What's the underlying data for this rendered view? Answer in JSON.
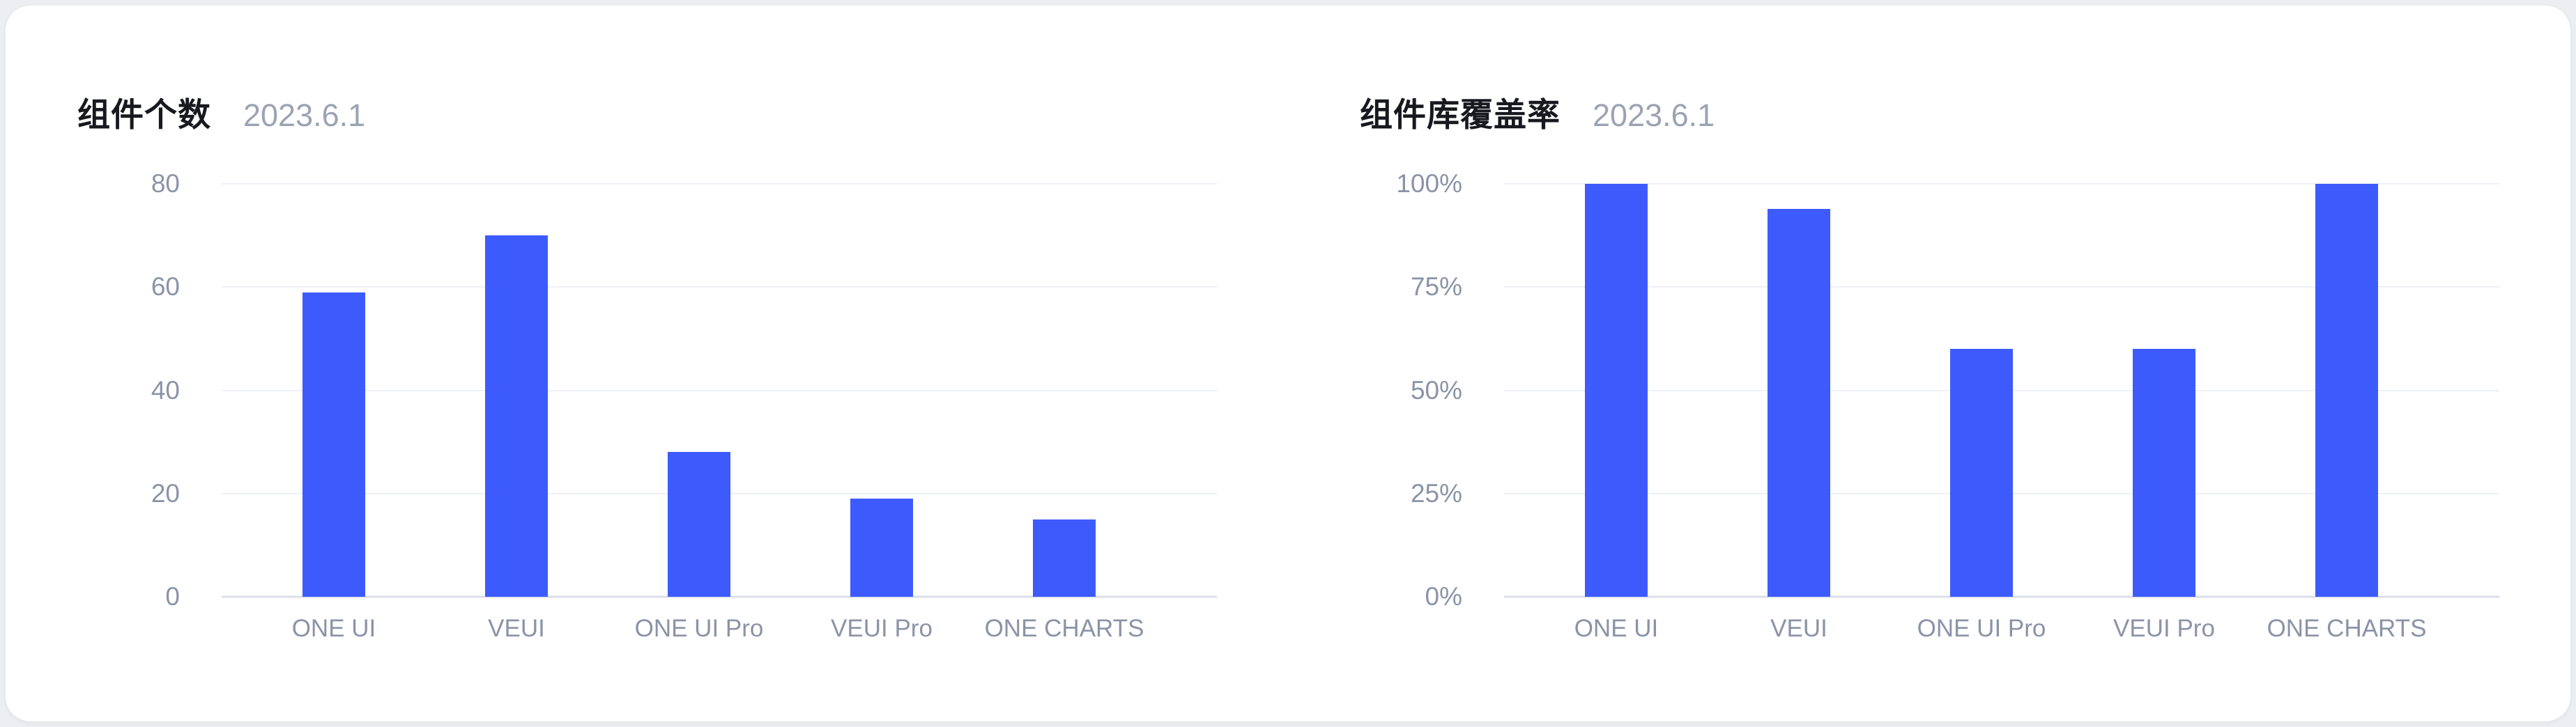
{
  "page": {
    "background_color": "#ECEEF1",
    "card_background_color": "#FFFFFF"
  },
  "colors": {
    "bar": "#3D5BFD",
    "gridline": "#EDF0F5",
    "axis_line": "#D9DEE8",
    "tick_label": "#8B93A7",
    "title": "#17191F",
    "date": "#9BA3B3"
  },
  "chart_data": [
    {
      "type": "bar",
      "title": "组件个数",
      "subtitle": "2023.6.1",
      "categories": [
        "ONE UI",
        "VEUI",
        "ONE UI Pro",
        "VEUI Pro",
        "ONE CHARTS"
      ],
      "values": [
        59,
        70,
        28,
        19,
        15
      ],
      "xlabel": "",
      "ylabel": "",
      "ylim": [
        0,
        80
      ],
      "ytick_values": [
        0,
        20,
        40,
        60,
        80
      ],
      "ytick_labels": [
        "0",
        "20",
        "40",
        "60",
        "80"
      ],
      "grid": true,
      "legend": false
    },
    {
      "type": "bar",
      "title": "组件库覆盖率",
      "subtitle": "2023.6.1",
      "categories": [
        "ONE UI",
        "VEUI",
        "ONE UI Pro",
        "VEUI Pro",
        "ONE CHARTS"
      ],
      "values": [
        100,
        94,
        60,
        60,
        100
      ],
      "xlabel": "",
      "ylabel": "",
      "ylim": [
        0,
        100
      ],
      "ytick_values": [
        0,
        25,
        50,
        75,
        100
      ],
      "ytick_labels": [
        "0%",
        "25%",
        "50%",
        "75%",
        "100%"
      ],
      "grid": true,
      "legend": false
    }
  ]
}
